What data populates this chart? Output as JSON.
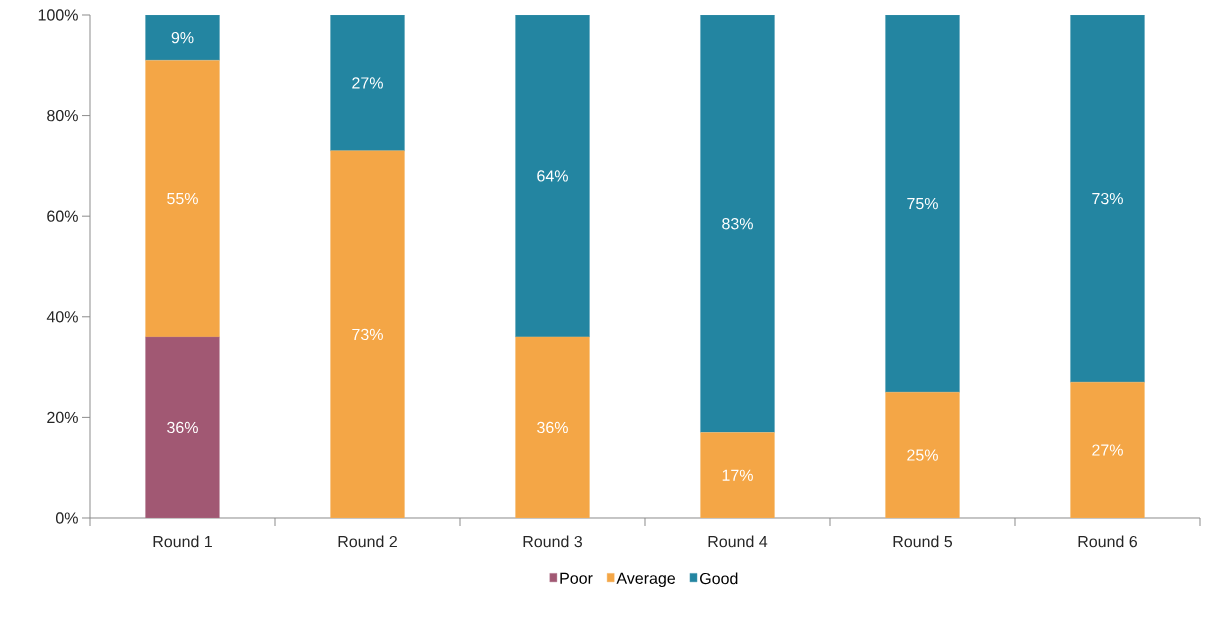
{
  "chart_data": {
    "type": "bar",
    "stacked": true,
    "categories": [
      "Round 1",
      "Round 2",
      "Round 3",
      "Round 4",
      "Round 5",
      "Round 6"
    ],
    "series": [
      {
        "name": "Poor",
        "color": "#a15873",
        "values": [
          36,
          0,
          0,
          0,
          0,
          0
        ],
        "value_labels": [
          "36%",
          null,
          null,
          null,
          null,
          null
        ]
      },
      {
        "name": "Average",
        "color": "#f4a646",
        "values": [
          55,
          73,
          36,
          17,
          25,
          27
        ],
        "value_labels": [
          "55%",
          "73%",
          "36%",
          "17%",
          "25%",
          "27%"
        ]
      },
      {
        "name": "Good",
        "color": "#2385a1",
        "values": [
          9,
          27,
          64,
          83,
          75,
          73
        ],
        "value_labels": [
          "9%",
          "27%",
          "64%",
          "83%",
          "75%",
          "73%"
        ]
      }
    ],
    "ylim": [
      0,
      100
    ],
    "yticks": [
      {
        "value": 0,
        "label": "0%"
      },
      {
        "value": 20,
        "label": "20%"
      },
      {
        "value": 40,
        "label": "40%"
      },
      {
        "value": 60,
        "label": "60%"
      },
      {
        "value": 80,
        "label": "80%"
      },
      {
        "value": 100,
        "label": "100%"
      }
    ],
    "grid": false,
    "legend": "bottom"
  }
}
